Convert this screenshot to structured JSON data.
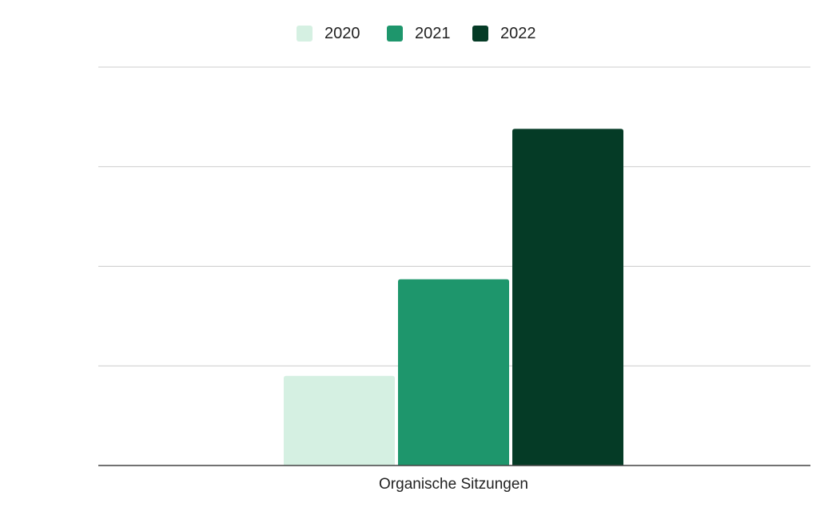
{
  "chart_data": {
    "type": "bar",
    "categories": [
      "Organische Sitzungen"
    ],
    "series": [
      {
        "name": "2020",
        "values": [
          0.9
        ],
        "color": "#d5f0e2"
      },
      {
        "name": "2021",
        "values": [
          1.87
        ],
        "color": "#1e966c"
      },
      {
        "name": "2022",
        "values": [
          3.38
        ],
        "color": "#053b26"
      }
    ],
    "ylim": [
      0,
      4
    ],
    "grid": true,
    "legend": "top-center",
    "title": "",
    "xlabel": "",
    "ylabel": ""
  }
}
